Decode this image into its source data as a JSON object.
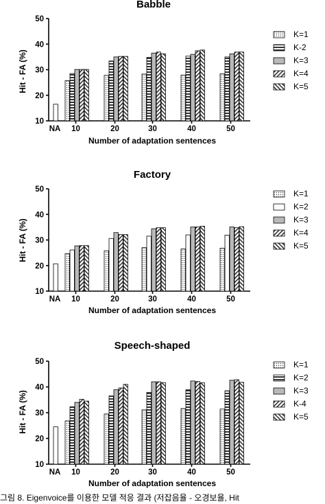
{
  "chart_data": [
    {
      "type": "bar",
      "title": "Babble",
      "xlabel": "Number of adaptation sentences",
      "ylabel": "Hit - FA (%)",
      "ylim": [
        10,
        50
      ],
      "yticks": [
        10,
        20,
        30,
        40,
        50
      ],
      "baseline": {
        "label": "NA",
        "value": 16.5
      },
      "categories": [
        "10",
        "20",
        "30",
        "40",
        "50"
      ],
      "series": [
        {
          "name": "K=1",
          "pattern": "dots",
          "values": [
            25.7,
            27.8,
            28.3,
            27.9,
            28.4
          ]
        },
        {
          "name": "K-2",
          "pattern": "hstripes",
          "values": [
            28.5,
            33.4,
            34.8,
            35.3,
            35.0
          ]
        },
        {
          "name": "K=3",
          "pattern": "gray",
          "values": [
            30.1,
            35.0,
            36.5,
            36.0,
            36.2
          ]
        },
        {
          "name": "K=4",
          "pattern": "diag",
          "values": [
            30.1,
            35.2,
            36.9,
            37.4,
            36.9
          ]
        },
        {
          "name": "K=5",
          "pattern": "backdiag",
          "values": [
            30.1,
            35.2,
            36.2,
            37.7,
            36.9
          ]
        }
      ],
      "legend_position": "right",
      "grid": false
    },
    {
      "type": "bar",
      "title": "Factory",
      "xlabel": "Number of adaptation sentences",
      "ylabel": "Hit - FA (%)",
      "ylim": [
        10,
        50
      ],
      "yticks": [
        10,
        20,
        30,
        40,
        50
      ],
      "baseline": {
        "label": "NA",
        "value": 20.7
      },
      "categories": [
        "10",
        "20",
        "30",
        "40",
        "50"
      ],
      "series": [
        {
          "name": "K=1",
          "pattern": "dots",
          "values": [
            24.7,
            25.8,
            27.0,
            26.5,
            26.8
          ]
        },
        {
          "name": "K=2",
          "pattern": "white",
          "values": [
            26.1,
            30.6,
            31.5,
            32.0,
            31.9
          ]
        },
        {
          "name": "K=3",
          "pattern": "gray",
          "values": [
            27.7,
            32.9,
            34.4,
            35.1,
            35.1
          ]
        },
        {
          "name": "K=4",
          "pattern": "diag",
          "values": [
            27.8,
            32.1,
            34.8,
            35.1,
            34.8
          ]
        },
        {
          "name": "K=5",
          "pattern": "backdiag",
          "values": [
            27.8,
            32.1,
            34.8,
            35.4,
            35.2
          ]
        }
      ],
      "legend_position": "right",
      "grid": false
    },
    {
      "type": "bar",
      "title": "Speech-shaped",
      "xlabel": "Number of adaptation sentences",
      "ylabel": "Hit - FA (%)",
      "ylim": [
        10,
        50
      ],
      "yticks": [
        10,
        20,
        30,
        40,
        50
      ],
      "baseline": {
        "label": "NA",
        "value": 24.5
      },
      "categories": [
        "10",
        "20",
        "30",
        "40",
        "50"
      ],
      "series": [
        {
          "name": "K=1",
          "pattern": "dots",
          "values": [
            26.8,
            29.5,
            31.1,
            31.6,
            31.4
          ]
        },
        {
          "name": "K=2",
          "pattern": "hstripes",
          "values": [
            32.3,
            36.5,
            37.9,
            38.9,
            38.5
          ]
        },
        {
          "name": "K=3",
          "pattern": "gray",
          "values": [
            34.0,
            38.9,
            42.0,
            42.3,
            42.6
          ]
        },
        {
          "name": "K-4",
          "pattern": "diag",
          "values": [
            35.2,
            39.6,
            42.0,
            42.1,
            42.8
          ]
        },
        {
          "name": "K=5",
          "pattern": "backdiag",
          "values": [
            34.5,
            41.0,
            41.7,
            41.6,
            41.8
          ]
        }
      ],
      "legend_position": "right",
      "grid": false
    }
  ],
  "caption": "그림 8. Eigenvoice를 이용한 모델 적응 결과 (저잡음율 - 오경보율, Hit"
}
